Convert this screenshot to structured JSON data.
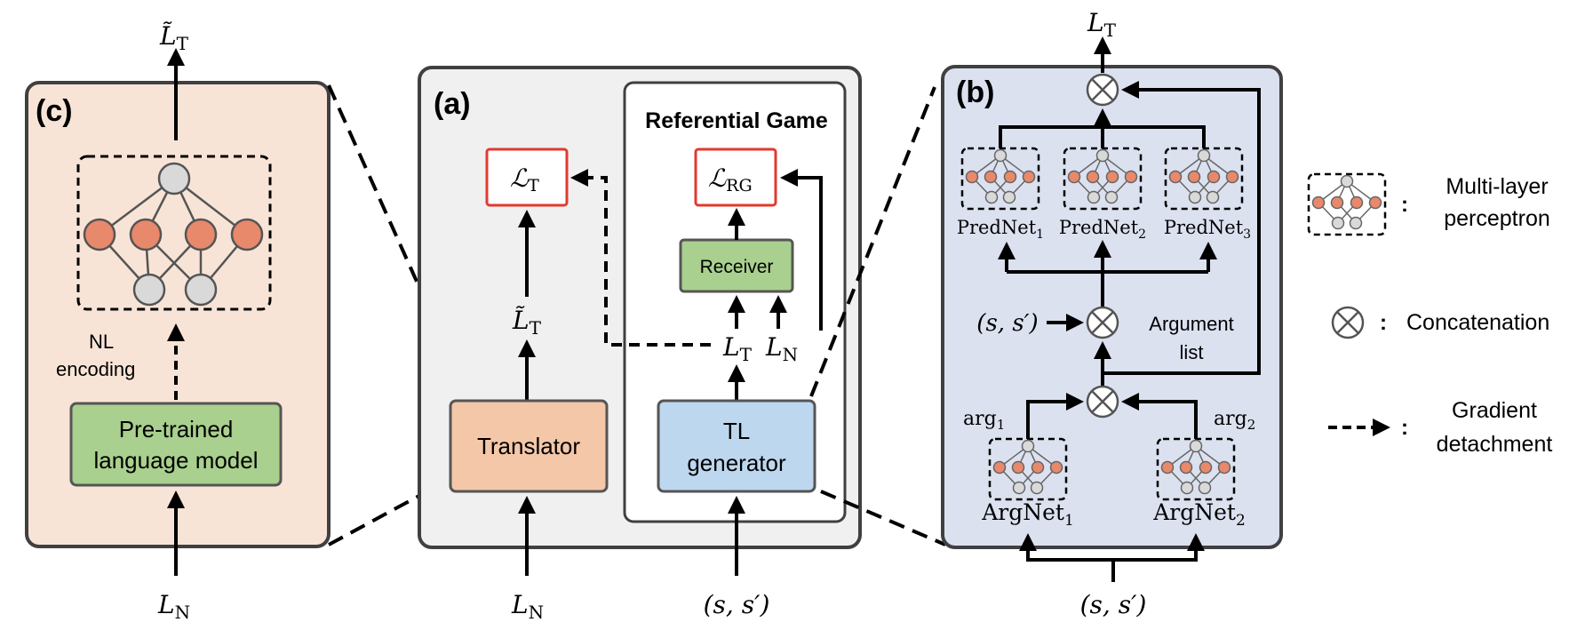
{
  "panel_c": {
    "label": "(c)",
    "output": "L̃",
    "output_sub": "T",
    "nl_encoding_line1": "NL",
    "nl_encoding_line2": "encoding",
    "plm_line1": "Pre-trained",
    "plm_line2": "language model",
    "input": "L",
    "input_sub": "N"
  },
  "panel_a": {
    "label": "(a)",
    "rg_title": "Referential Game",
    "loss_t": "ℒ",
    "loss_t_sub": "T",
    "loss_rg": "ℒ",
    "loss_rg_sub": "RG",
    "receiver": "Receiver",
    "lt_tilde": "L̃",
    "lt_tilde_sub": "T",
    "lt": "L",
    "lt_sub": "T",
    "ln": "L",
    "ln_sub": "N",
    "translator": "Translator",
    "tl_gen_line1": "TL",
    "tl_gen_line2": "generator",
    "input_ln": "L",
    "input_ln_sub": "N",
    "input_ss": "(s, s′)"
  },
  "panel_b": {
    "label": "(b)",
    "output": "L",
    "output_sub": "T",
    "prednet1": "PredNet",
    "prednet1_sub": "1",
    "prednet2": "PredNet",
    "prednet2_sub": "2",
    "prednet3": "PredNet",
    "prednet3_sub": "3",
    "ss": "(s, s′)",
    "arglist_line1": "Argument",
    "arglist_line2": "list",
    "arg1": "arg",
    "arg1_sub": "1",
    "arg2": "arg",
    "arg2_sub": "2",
    "argnet1": "ArgNet",
    "argnet1_sub": "1",
    "argnet2": "ArgNet",
    "argnet2_sub": "2",
    "input_ss": "(s, s′)"
  },
  "legend": {
    "colon": ":",
    "mlp_line1": "Multi-layer",
    "mlp_line2": "perceptron",
    "concat": "Concatenation",
    "grad_line1": "Gradient",
    "grad_line2": "detachment"
  },
  "colors": {
    "panel_c_fill": "#f8e4d6",
    "panel_a_fill": "#f0f0f0",
    "panel_b_fill": "#dbe1ef",
    "plm_fill": "#a9d08e",
    "receiver_fill": "#a9d08e",
    "translator_fill": "#f4c7a8",
    "tl_gen_fill": "#bdd7ee",
    "loss_border": "#e03a2f",
    "node_orange": "#e8896b",
    "node_gray": "#d9d9d9"
  }
}
